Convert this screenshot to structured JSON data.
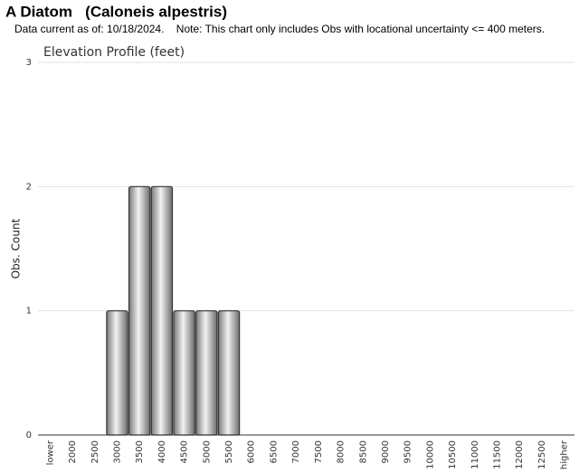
{
  "chart_data": {
    "type": "bar",
    "title": "A Diatom   (Caloneis alpestris)",
    "subtitle": "Data current as of: 10/18/2024.    Note: This chart only includes Obs with locational uncertainty <= 400 meters.",
    "chart_title": "Elevation Profile (feet)",
    "ylabel": "Obs. Count",
    "categories": [
      "lower",
      "2000",
      "2500",
      "3000",
      "3500",
      "4000",
      "4500",
      "5000",
      "5500",
      "6000",
      "6500",
      "7000",
      "7500",
      "8000",
      "8500",
      "9000",
      "9500",
      "10000",
      "10500",
      "11000",
      "11500",
      "12000",
      "12500",
      "higher"
    ],
    "values": [
      0,
      0,
      0,
      1,
      2,
      2,
      1,
      1,
      1,
      0,
      0,
      0,
      0,
      0,
      0,
      0,
      0,
      0,
      0,
      0,
      0,
      0,
      0,
      0
    ],
    "color": "#a0a0a0",
    "ylim": [
      0,
      3
    ],
    "yticks": [
      0,
      1,
      2,
      3
    ],
    "grid": true
  }
}
